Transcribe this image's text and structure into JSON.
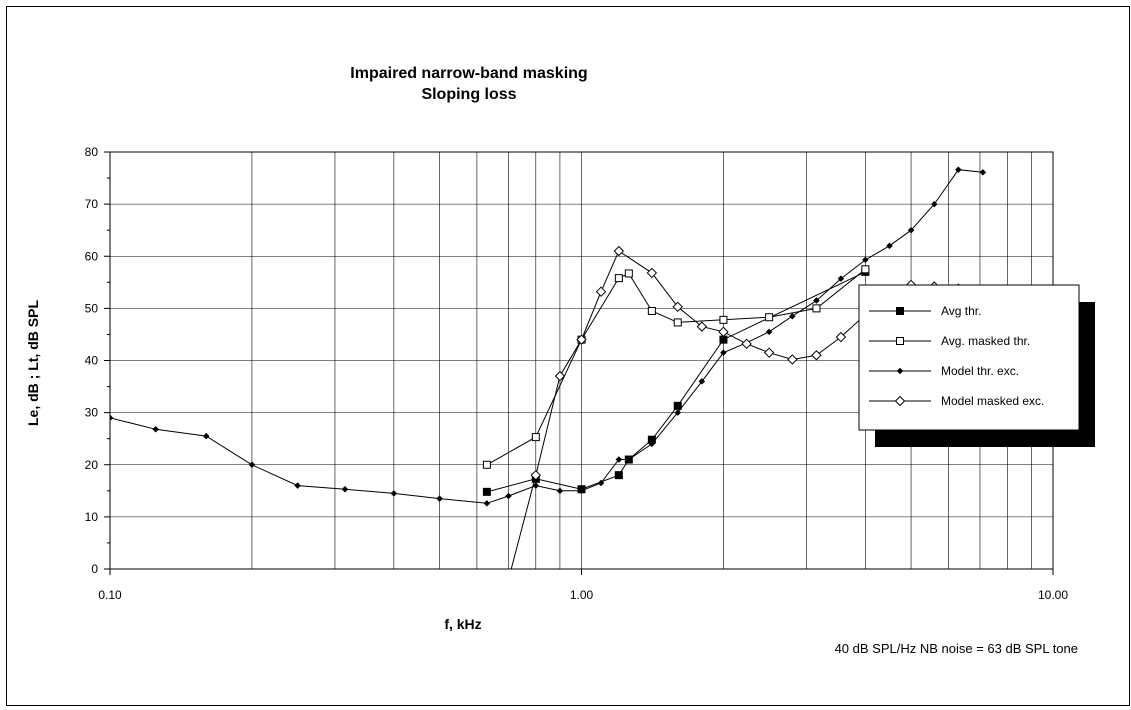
{
  "chart_data": {
    "type": "line",
    "title": "Impaired narrow-band masking",
    "subtitle": "Sloping loss",
    "xlabel": "f, kHz",
    "ylabel": "Le, dB  ;  Lt, dB SPL",
    "xscale": "log",
    "xlim": [
      0.1,
      10
    ],
    "ylim": [
      0,
      80
    ],
    "grid": true,
    "legend_position": "right",
    "x_ticks": [
      0.1,
      1,
      10
    ],
    "x_tick_labels": [
      "0.10",
      "1.00",
      "10.00"
    ],
    "y_ticks": [
      0,
      10,
      20,
      30,
      40,
      50,
      60,
      70,
      80
    ],
    "y_tick_labels": [
      "0",
      "10",
      "20",
      "30",
      "40",
      "50",
      "60",
      "70",
      "80"
    ],
    "annotation": "40 dB SPL/Hz NB noise = 63 dB SPL tone",
    "series": [
      {
        "name": "Avg thr.",
        "marker": "square-filled",
        "x": [
          0.63,
          0.8,
          1.0,
          1.2,
          1.26,
          1.41,
          1.6,
          2.0,
          4.0
        ],
        "y": [
          14.8,
          17.3,
          15.3,
          18.0,
          21.0,
          24.8,
          31.3,
          44.0,
          57.0
        ]
      },
      {
        "name": "Avg. masked thr.",
        "marker": "square-open",
        "x": [
          0.63,
          0.8,
          1.0,
          1.2,
          1.26,
          1.41,
          1.6,
          2.0,
          2.5,
          3.15,
          4.0
        ],
        "y": [
          20.0,
          25.3,
          44.0,
          55.8,
          56.7,
          49.5,
          47.3,
          47.8,
          48.3,
          50.0,
          57.5
        ]
      },
      {
        "name": "Model thr. exc.",
        "marker": "diamond-filled",
        "x": [
          0.1,
          0.125,
          0.16,
          0.2,
          0.25,
          0.315,
          0.4,
          0.5,
          0.63,
          0.7,
          0.8,
          0.9,
          1.0,
          1.1,
          1.2,
          1.26,
          1.41,
          1.6,
          1.8,
          2.0,
          2.24,
          2.5,
          2.8,
          3.15,
          3.55,
          4.0,
          4.5,
          5.0,
          5.6,
          6.3,
          7.1
        ],
        "y": [
          29.0,
          26.8,
          25.5,
          20.0,
          16.0,
          15.3,
          14.5,
          13.5,
          12.6,
          14.0,
          16.0,
          15.0,
          15.0,
          16.5,
          21.0,
          21.0,
          24.0,
          30.0,
          36.0,
          41.5,
          43.4,
          45.5,
          48.5,
          51.5,
          55.7,
          59.3,
          62.0,
          65.0,
          70.0,
          76.6,
          76.1
        ]
      },
      {
        "name": "Model masked exc.",
        "marker": "diamond-open",
        "x": [
          0.7,
          0.8,
          0.9,
          1.0,
          1.1,
          1.2,
          1.41,
          1.6,
          1.8,
          2.0,
          2.24,
          2.5,
          2.8,
          3.15,
          3.55,
          4.0,
          4.5,
          5.0,
          5.6,
          6.3,
          7.1
        ],
        "y": [
          -2.0,
          18.0,
          37.0,
          44.0,
          53.2,
          61.0,
          56.8,
          50.3,
          46.5,
          45.5,
          43.2,
          41.5,
          40.2,
          41.0,
          44.5,
          48.8,
          52.0,
          54.5,
          54.2,
          53.8,
          53.5
        ]
      }
    ]
  }
}
